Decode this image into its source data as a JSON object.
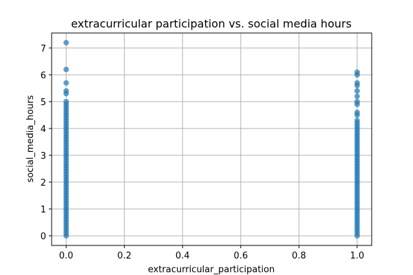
{
  "chart_data": {
    "type": "scatter",
    "title": "extracurricular participation vs. social media hours",
    "xlabel": "extracurricular_participation",
    "ylabel": "social_media_hours",
    "xlim": [
      -0.05,
      1.05
    ],
    "ylim": [
      -0.36,
      7.56
    ],
    "xticks": [
      0.0,
      0.2,
      0.4,
      0.6,
      0.8,
      1.0
    ],
    "xtick_labels": [
      "0.0",
      "0.2",
      "0.4",
      "0.6",
      "0.8",
      "1.0"
    ],
    "yticks": [
      0,
      1,
      2,
      3,
      4,
      5,
      6,
      7
    ],
    "ytick_labels": [
      "0",
      "1",
      "2",
      "3",
      "4",
      "5",
      "6",
      "7"
    ],
    "grid": true,
    "marker_color": "#1f77b4",
    "marker_alpha": 0.7,
    "series": [
      {
        "points": [
          [
            0.0,
            7.2
          ],
          [
            0.0,
            6.2
          ],
          [
            0.0,
            5.7
          ],
          [
            0.0,
            5.4
          ],
          [
            0.0,
            5.3
          ],
          [
            0.0,
            5.0
          ],
          [
            0.0,
            4.9
          ],
          [
            0.0,
            4.8
          ],
          [
            0.0,
            4.7
          ],
          [
            0.0,
            4.6
          ],
          [
            0.0,
            4.5
          ],
          [
            0.0,
            4.4
          ],
          [
            0.0,
            4.3
          ],
          [
            0.0,
            4.2
          ],
          [
            0.0,
            4.1
          ],
          [
            0.0,
            4.0
          ],
          [
            0.0,
            3.9
          ],
          [
            0.0,
            3.8
          ],
          [
            0.0,
            3.7
          ],
          [
            0.0,
            3.6
          ],
          [
            0.0,
            3.5
          ],
          [
            0.0,
            3.4
          ],
          [
            0.0,
            3.3
          ],
          [
            0.0,
            3.2
          ],
          [
            0.0,
            3.1
          ],
          [
            0.0,
            3.0
          ],
          [
            0.0,
            2.9
          ],
          [
            0.0,
            2.8
          ],
          [
            0.0,
            2.7
          ],
          [
            0.0,
            2.6
          ],
          [
            0.0,
            2.5
          ],
          [
            0.0,
            2.4
          ],
          [
            0.0,
            2.3
          ],
          [
            0.0,
            2.2
          ],
          [
            0.0,
            2.1
          ],
          [
            0.0,
            2.0
          ],
          [
            0.0,
            1.9
          ],
          [
            0.0,
            1.8
          ],
          [
            0.0,
            1.7
          ],
          [
            0.0,
            1.6
          ],
          [
            0.0,
            1.5
          ],
          [
            0.0,
            1.4
          ],
          [
            0.0,
            1.3
          ],
          [
            0.0,
            1.2
          ],
          [
            0.0,
            1.1
          ],
          [
            0.0,
            1.0
          ],
          [
            0.0,
            0.9
          ],
          [
            0.0,
            0.8
          ],
          [
            0.0,
            0.7
          ],
          [
            0.0,
            0.6
          ],
          [
            0.0,
            0.5
          ],
          [
            0.0,
            0.4
          ],
          [
            0.0,
            0.3
          ],
          [
            0.0,
            0.2
          ],
          [
            0.0,
            0.1
          ],
          [
            0.0,
            0.0
          ],
          [
            1.0,
            6.1
          ],
          [
            1.0,
            6.0
          ],
          [
            1.0,
            5.7
          ],
          [
            1.0,
            5.6
          ],
          [
            1.0,
            5.4
          ],
          [
            1.0,
            5.2
          ],
          [
            1.0,
            5.0
          ],
          [
            1.0,
            4.9
          ],
          [
            1.0,
            4.6
          ],
          [
            1.0,
            4.5
          ],
          [
            1.0,
            4.3
          ],
          [
            1.0,
            4.2
          ],
          [
            1.0,
            4.1
          ],
          [
            1.0,
            4.0
          ],
          [
            1.0,
            3.9
          ],
          [
            1.0,
            3.8
          ],
          [
            1.0,
            3.7
          ],
          [
            1.0,
            3.6
          ],
          [
            1.0,
            3.5
          ],
          [
            1.0,
            3.4
          ],
          [
            1.0,
            3.3
          ],
          [
            1.0,
            3.2
          ],
          [
            1.0,
            3.1
          ],
          [
            1.0,
            3.0
          ],
          [
            1.0,
            2.9
          ],
          [
            1.0,
            2.8
          ],
          [
            1.0,
            2.7
          ],
          [
            1.0,
            2.6
          ],
          [
            1.0,
            2.5
          ],
          [
            1.0,
            2.4
          ],
          [
            1.0,
            2.3
          ],
          [
            1.0,
            2.2
          ],
          [
            1.0,
            2.1
          ],
          [
            1.0,
            2.0
          ],
          [
            1.0,
            1.9
          ],
          [
            1.0,
            1.8
          ],
          [
            1.0,
            1.7
          ],
          [
            1.0,
            1.6
          ],
          [
            1.0,
            1.5
          ],
          [
            1.0,
            1.4
          ],
          [
            1.0,
            1.3
          ],
          [
            1.0,
            1.2
          ],
          [
            1.0,
            1.1
          ],
          [
            1.0,
            1.0
          ],
          [
            1.0,
            0.9
          ],
          [
            1.0,
            0.8
          ],
          [
            1.0,
            0.7
          ],
          [
            1.0,
            0.6
          ],
          [
            1.0,
            0.5
          ],
          [
            1.0,
            0.4
          ],
          [
            1.0,
            0.3
          ],
          [
            1.0,
            0.2
          ],
          [
            1.0,
            0.1
          ],
          [
            1.0,
            0.0
          ]
        ]
      }
    ]
  }
}
